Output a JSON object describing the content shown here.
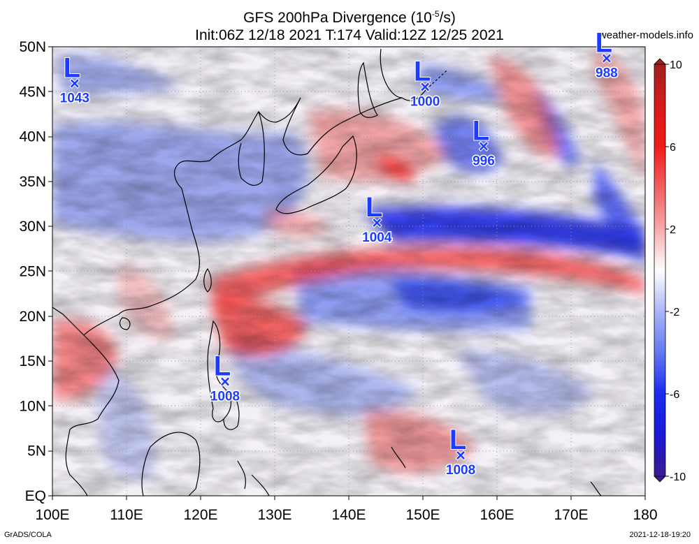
{
  "title_line1": "GFS 200hPa Divergence (10",
  "title_line1_sup": "-5",
  "title_line1_end": "/s)",
  "title_line2": "Init:06Z 12/18 2021  T:174  Valid:12Z 12/25 2021",
  "site": "weather-models.info",
  "footer_left": "GrADS/COLA",
  "footer_right": "2021-12-18-19:20",
  "lat_labels": [
    "50N",
    "45N",
    "40N",
    "35N",
    "30N",
    "25N",
    "20N",
    "15N",
    "10N",
    "5N",
    "EQ"
  ],
  "lon_labels": [
    "100E",
    "110E",
    "120E",
    "130E",
    "140E",
    "150E",
    "160E",
    "170E",
    "180"
  ],
  "colorbar": {
    "labels": [
      "10",
      "6",
      "2",
      "-2",
      "-6",
      "-10"
    ],
    "colors": [
      "#5a1fa0",
      "#1a1ae6",
      "#4d66f0",
      "#9aaaf5",
      "#d9dffb",
      "#ffffff",
      "#fbd9d9",
      "#f59a9a",
      "#f04d4d",
      "#e61a1a",
      "#a01f1f"
    ]
  },
  "lows": [
    {
      "letter": "L",
      "value": "1043",
      "lon": 103.0,
      "lat": 46.0
    },
    {
      "letter": "L",
      "value": "1000",
      "lon": 150.3,
      "lat": 45.6
    },
    {
      "letter": "L",
      "value": "988",
      "lon": 174.8,
      "lat": 48.8
    },
    {
      "letter": "L",
      "value": "996",
      "lon": 158.2,
      "lat": 39.0
    },
    {
      "letter": "L",
      "value": "1004",
      "lon": 143.8,
      "lat": 30.5
    },
    {
      "letter": "L",
      "value": "1008",
      "lon": 123.3,
      "lat": 12.8
    },
    {
      "letter": "L",
      "value": "1008",
      "lon": 155.1,
      "lat": 4.6
    }
  ],
  "domain": {
    "lon": [
      100,
      180
    ],
    "lat": [
      0,
      50
    ]
  }
}
